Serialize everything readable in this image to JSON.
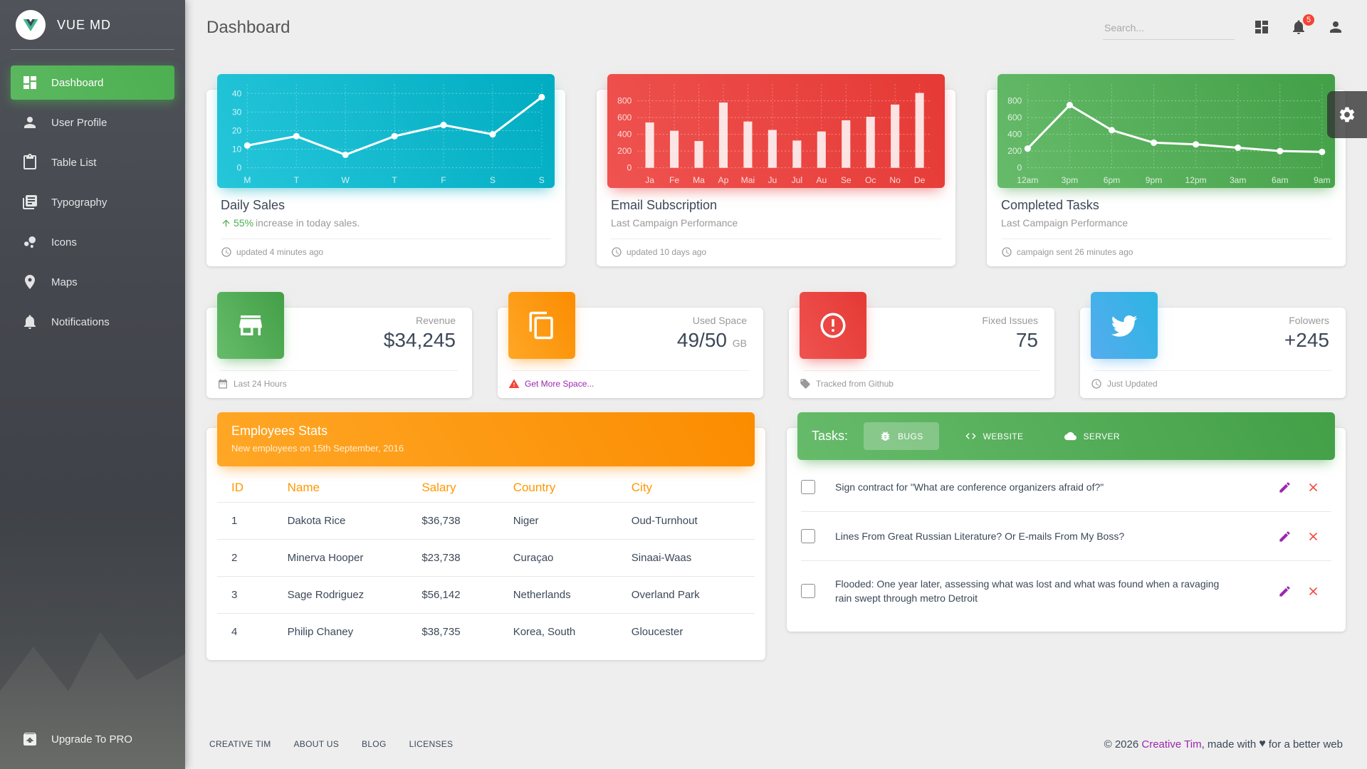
{
  "sidebar": {
    "brand": "VUE MD",
    "items": [
      {
        "label": "Dashboard",
        "icon": "dashboard-icon",
        "active": true
      },
      {
        "label": "User Profile",
        "icon": "person-icon",
        "active": false
      },
      {
        "label": "Table List",
        "icon": "clipboard-icon",
        "active": false
      },
      {
        "label": "Typography",
        "icon": "library-icon",
        "active": false
      },
      {
        "label": "Icons",
        "icon": "bubble-chart-icon",
        "active": false
      },
      {
        "label": "Maps",
        "icon": "place-icon",
        "active": false
      },
      {
        "label": "Notifications",
        "icon": "bell-icon",
        "active": false
      }
    ],
    "upgrade": {
      "label": "Upgrade To PRO",
      "icon": "unarchive-icon"
    }
  },
  "header": {
    "title": "Dashboard",
    "search_placeholder": "Search...",
    "notification_count": "5"
  },
  "chart_cards": [
    {
      "title": "Daily Sales",
      "subtitle_highlight": "55%",
      "subtitle": "increase in today sales.",
      "footer": "updated 4 minutes ago",
      "accent": "#00acc1"
    },
    {
      "title": "Email Subscription",
      "subtitle": "Last Campaign Performance",
      "footer": "updated 10 days ago",
      "accent": "#e53935"
    },
    {
      "title": "Completed Tasks",
      "subtitle": "Last Campaign Performance",
      "footer": "campaign sent 26 minutes ago",
      "accent": "#43a047"
    }
  ],
  "chart_data": [
    {
      "type": "line",
      "title": "Daily Sales",
      "categories": [
        "M",
        "T",
        "W",
        "T",
        "F",
        "S",
        "S"
      ],
      "values": [
        12,
        17,
        7,
        17,
        23,
        18,
        38
      ],
      "ylim": [
        0,
        45
      ],
      "yticks": [
        0,
        10,
        20,
        30,
        40
      ],
      "grid": true,
      "legend": "none",
      "line_color": "#ffffff"
    },
    {
      "type": "bar",
      "title": "Email Subscription",
      "categories": [
        "Ja",
        "Fe",
        "Ma",
        "Ap",
        "Mai",
        "Ju",
        "Jul",
        "Au",
        "Se",
        "Oc",
        "No",
        "De"
      ],
      "values": [
        542,
        443,
        320,
        780,
        553,
        453,
        326,
        434,
        568,
        610,
        756,
        895
      ],
      "ylim": [
        0,
        1000
      ],
      "yticks": [
        0,
        200,
        400,
        600,
        800
      ],
      "grid": true,
      "legend": "none",
      "bar_color": "rgba(255,255,255,0.85)"
    },
    {
      "type": "line",
      "title": "Completed Tasks",
      "categories": [
        "12am",
        "3pm",
        "6pm",
        "9pm",
        "12pm",
        "3am",
        "6am",
        "9am"
      ],
      "values": [
        230,
        750,
        450,
        300,
        280,
        240,
        200,
        190
      ],
      "ylim": [
        0,
        1000
      ],
      "yticks": [
        0,
        200,
        400,
        600,
        800
      ],
      "grid": true,
      "legend": "none",
      "line_color": "#ffffff"
    }
  ],
  "stats": [
    {
      "label": "Revenue",
      "value": "$34,245",
      "unit": "",
      "icon": "store-icon",
      "tile_color": "green",
      "footer_icon": "calendar-icon",
      "footer": "Last 24 Hours",
      "footer_link": false
    },
    {
      "label": "Used Space",
      "value": "49/50",
      "unit": "GB",
      "icon": "copy-icon",
      "tile_color": "orange",
      "footer_icon": "warning-icon",
      "footer": "Get More Space...",
      "footer_link": true
    },
    {
      "label": "Fixed Issues",
      "value": "75",
      "unit": "",
      "icon": "info-icon",
      "tile_color": "red",
      "footer_icon": "tag-icon",
      "footer": "Tracked from Github",
      "footer_link": false
    },
    {
      "label": "Folowers",
      "value": "+245",
      "unit": "",
      "icon": "twitter-icon",
      "tile_color": "blue",
      "footer_icon": "update-icon",
      "footer": "Just Updated",
      "footer_link": false
    }
  ],
  "employees": {
    "title": "Employees Stats",
    "subtitle": "New employees on 15th September, 2016",
    "columns": [
      "ID",
      "Name",
      "Salary",
      "Country",
      "City"
    ],
    "rows": [
      [
        "1",
        "Dakota Rice",
        "$36,738",
        "Niger",
        "Oud-Turnhout"
      ],
      [
        "2",
        "Minerva Hooper",
        "$23,738",
        "Curaçao",
        "Sinaai-Waas"
      ],
      [
        "3",
        "Sage Rodriguez",
        "$56,142",
        "Netherlands",
        "Overland Park"
      ],
      [
        "4",
        "Philip Chaney",
        "$38,735",
        "Korea, South",
        "Gloucester"
      ]
    ]
  },
  "tasks": {
    "title": "Tasks:",
    "tabs": [
      {
        "label": "BUGS",
        "icon": "bug-icon",
        "active": true
      },
      {
        "label": "WEBSITE",
        "icon": "code-icon",
        "active": false
      },
      {
        "label": "SERVER",
        "icon": "cloud-icon",
        "active": false
      }
    ],
    "items": [
      {
        "text": "Sign contract for \"What are conference organizers afraid of?\"",
        "checked": false
      },
      {
        "text": "Lines From Great Russian Literature? Or E-mails From My Boss?",
        "checked": false
      },
      {
        "text": "Flooded: One year later, assessing what was lost and what was found when a ravaging rain swept through metro Detroit",
        "checked": false
      }
    ]
  },
  "footer": {
    "links": [
      "CREATIVE TIM",
      "ABOUT US",
      "BLOG",
      "LICENSES"
    ],
    "copyright_prefix": "© 2026 ",
    "copyright_link": "Creative Tim",
    "copyright_mid": ", made with",
    "heart": "♥",
    "copyright_suffix": "for a better web"
  },
  "colors": {
    "accent_green": "#4caf50",
    "link_purple": "#9c27b0",
    "danger_red": "#f44336",
    "header_orange": "#fb8c00"
  }
}
